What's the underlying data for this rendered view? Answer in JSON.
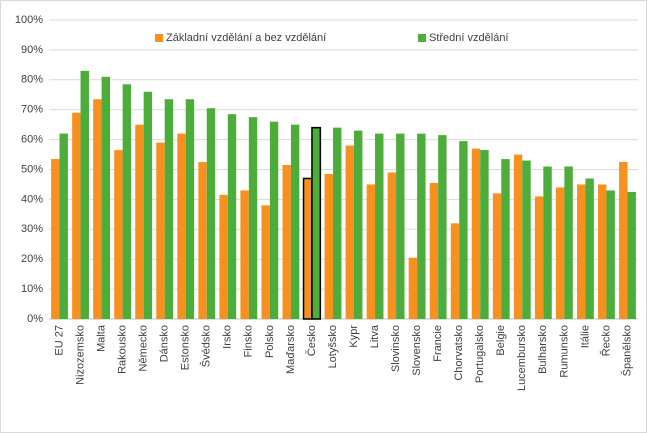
{
  "chart_data": {
    "type": "bar",
    "categories": [
      "EU 27",
      "Nizozemsko",
      "Malta",
      "Rakousko",
      "Německo",
      "Dánsko",
      "Estonsko",
      "Švédsko",
      "Irsko",
      "Finsko",
      "Polsko",
      "Maďarsko",
      "Česko",
      "Lotyšsko",
      "Kypr",
      "Litva",
      "Slovinsko",
      "Slovensko",
      "Francie",
      "Chorvatsko",
      "Portugalsko",
      "Belgie",
      "Lucembursko",
      "Bulharsko",
      "Rumunsko",
      "Itálie",
      "Řecko",
      "Španělsko"
    ],
    "series": [
      {
        "name": "Základní vzdělání a bez vzdělání",
        "color": "#f7901e",
        "values": [
          53.5,
          69,
          73.5,
          56.5,
          65,
          59,
          62,
          52.5,
          41.5,
          43,
          38,
          51.5,
          47,
          48.5,
          58,
          45,
          49,
          20.5,
          45.5,
          32,
          57,
          42,
          55,
          41,
          44,
          45,
          45,
          52.5
        ]
      },
      {
        "name": "Střední vzdělání",
        "color": "#4cad3a",
        "values": [
          62,
          83,
          81,
          78.5,
          76,
          73.5,
          73.5,
          70.5,
          68.5,
          67.5,
          66,
          65,
          64,
          64,
          63,
          62,
          62,
          62,
          61.5,
          59.5,
          56.5,
          53.5,
          53,
          51,
          51,
          47,
          43,
          42.5
        ]
      }
    ],
    "highlight": "Česko",
    "ylim": [
      0,
      100
    ],
    "yticks": [
      {
        "value": 0,
        "label": "0%"
      },
      {
        "value": 10,
        "label": "10%"
      },
      {
        "value": 20,
        "label": "20%"
      },
      {
        "value": 30,
        "label": "30%"
      },
      {
        "value": 40,
        "label": "40%"
      },
      {
        "value": 50,
        "label": "50%"
      },
      {
        "value": 60,
        "label": "60%"
      },
      {
        "value": 70,
        "label": "70%"
      },
      {
        "value": 80,
        "label": "80%"
      },
      {
        "value": 90,
        "label": "90%"
      },
      {
        "value": 100,
        "label": "100%"
      }
    ],
    "grid": true,
    "legend": "top"
  }
}
